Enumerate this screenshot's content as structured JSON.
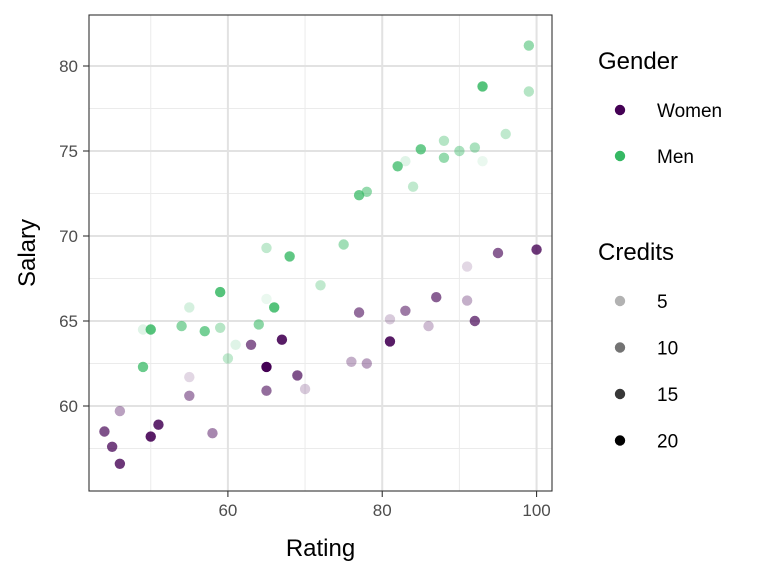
{
  "chart_data": {
    "type": "scatter",
    "title": "",
    "xlabel": "Rating",
    "ylabel": "Salary",
    "xlim": [
      42,
      102
    ],
    "ylim": [
      55,
      83
    ],
    "x_ticks": [
      60,
      80,
      100
    ],
    "y_ticks": [
      60,
      65,
      70,
      75,
      80
    ],
    "x_tick_labels": [
      "60",
      "80",
      "100"
    ],
    "y_tick_labels": [
      "60",
      "65",
      "70",
      "75",
      "80"
    ],
    "grid": true,
    "legend_position": "right",
    "colors": {
      "Women": "#440154",
      "Men": "#35b863"
    },
    "legends": [
      {
        "title": "Gender",
        "items": [
          {
            "label": "Women",
            "color": "#440154",
            "alpha": 1.0
          },
          {
            "label": "Men",
            "color": "#35b863",
            "alpha": 1.0
          }
        ]
      },
      {
        "title": "Credits",
        "items": [
          {
            "label": "5",
            "color": "#000000",
            "alpha": 0.3
          },
          {
            "label": "10",
            "color": "#000000",
            "alpha": 0.55
          },
          {
            "label": "15",
            "color": "#000000",
            "alpha": 0.78
          },
          {
            "label": "20",
            "color": "#000000",
            "alpha": 1.0
          }
        ]
      }
    ],
    "series": [
      {
        "name": "Women",
        "color": "#440154",
        "points": [
          {
            "x": 44,
            "y": 58.5,
            "credits": 14
          },
          {
            "x": 45,
            "y": 57.6,
            "credits": 15
          },
          {
            "x": 46,
            "y": 56.6,
            "credits": 16
          },
          {
            "x": 46,
            "y": 59.7,
            "credits": 8
          },
          {
            "x": 50,
            "y": 58.2,
            "credits": 18
          },
          {
            "x": 51,
            "y": 58.9,
            "credits": 17
          },
          {
            "x": 55,
            "y": 61.7,
            "credits": 4
          },
          {
            "x": 55,
            "y": 60.6,
            "credits": 10
          },
          {
            "x": 58,
            "y": 58.4,
            "credits": 10
          },
          {
            "x": 63,
            "y": 63.6,
            "credits": 13
          },
          {
            "x": 65,
            "y": 62.3,
            "credits": 20
          },
          {
            "x": 65,
            "y": 60.9,
            "credits": 12
          },
          {
            "x": 67,
            "y": 63.9,
            "credits": 18
          },
          {
            "x": 69,
            "y": 61.8,
            "credits": 14
          },
          {
            "x": 70,
            "y": 61.0,
            "credits": 5
          },
          {
            "x": 76,
            "y": 62.6,
            "credits": 7
          },
          {
            "x": 77,
            "y": 65.5,
            "credits": 12
          },
          {
            "x": 78,
            "y": 62.5,
            "credits": 8
          },
          {
            "x": 81,
            "y": 65.1,
            "credits": 5
          },
          {
            "x": 81,
            "y": 63.8,
            "credits": 18
          },
          {
            "x": 83,
            "y": 65.6,
            "credits": 11
          },
          {
            "x": 86,
            "y": 64.7,
            "credits": 6
          },
          {
            "x": 87,
            "y": 66.4,
            "credits": 13
          },
          {
            "x": 91,
            "y": 68.2,
            "credits": 4
          },
          {
            "x": 91,
            "y": 66.2,
            "credits": 7
          },
          {
            "x": 92,
            "y": 65.0,
            "credits": 14
          },
          {
            "x": 95,
            "y": 69.0,
            "credits": 13
          },
          {
            "x": 100,
            "y": 69.2,
            "credits": 16
          }
        ]
      },
      {
        "name": "Men",
        "color": "#35b863",
        "points": [
          {
            "x": 49,
            "y": 62.3,
            "credits": 15
          },
          {
            "x": 49,
            "y": 64.5,
            "credits": 4
          },
          {
            "x": 50,
            "y": 64.5,
            "credits": 17
          },
          {
            "x": 54,
            "y": 64.7,
            "credits": 12
          },
          {
            "x": 55,
            "y": 65.8,
            "credits": 5
          },
          {
            "x": 57,
            "y": 64.4,
            "credits": 14
          },
          {
            "x": 59,
            "y": 66.7,
            "credits": 17
          },
          {
            "x": 59,
            "y": 64.6,
            "credits": 8
          },
          {
            "x": 60,
            "y": 62.8,
            "credits": 7
          },
          {
            "x": 61,
            "y": 63.6,
            "credits": 4
          },
          {
            "x": 64,
            "y": 64.8,
            "credits": 12
          },
          {
            "x": 65,
            "y": 69.3,
            "credits": 7
          },
          {
            "x": 65,
            "y": 66.3,
            "credits": 3
          },
          {
            "x": 66,
            "y": 65.8,
            "credits": 17
          },
          {
            "x": 68,
            "y": 68.8,
            "credits": 16
          },
          {
            "x": 72,
            "y": 67.1,
            "credits": 7
          },
          {
            "x": 75,
            "y": 69.5,
            "credits": 10
          },
          {
            "x": 77,
            "y": 72.4,
            "credits": 15
          },
          {
            "x": 78,
            "y": 72.6,
            "credits": 11
          },
          {
            "x": 82,
            "y": 74.1,
            "credits": 15
          },
          {
            "x": 83,
            "y": 74.4,
            "credits": 4
          },
          {
            "x": 84,
            "y": 72.9,
            "credits": 7
          },
          {
            "x": 85,
            "y": 75.1,
            "credits": 15
          },
          {
            "x": 88,
            "y": 75.6,
            "credits": 8
          },
          {
            "x": 88,
            "y": 74.6,
            "credits": 11
          },
          {
            "x": 90,
            "y": 75.0,
            "credits": 9
          },
          {
            "x": 92,
            "y": 75.2,
            "credits": 9
          },
          {
            "x": 93,
            "y": 74.4,
            "credits": 3
          },
          {
            "x": 93,
            "y": 78.8,
            "credits": 17
          },
          {
            "x": 96,
            "y": 76.0,
            "credits": 7
          },
          {
            "x": 99,
            "y": 78.5,
            "credits": 8
          },
          {
            "x": 99,
            "y": 81.2,
            "credits": 11
          }
        ]
      }
    ]
  }
}
